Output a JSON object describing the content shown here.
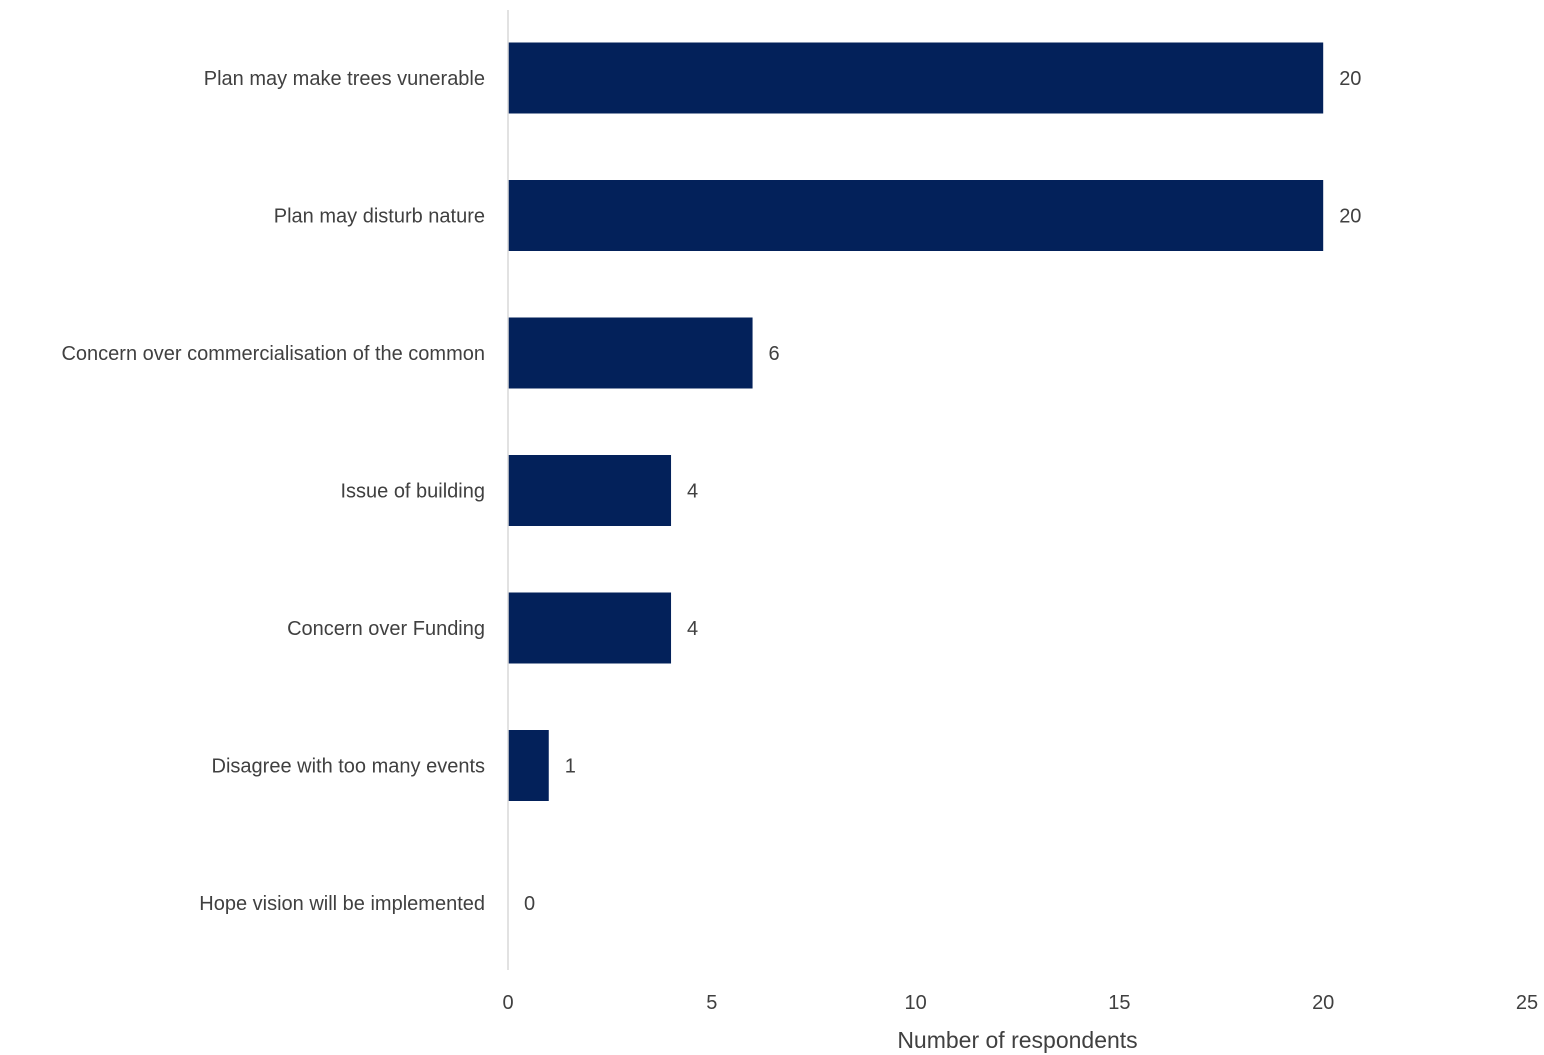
{
  "chart_data": {
    "type": "bar",
    "orientation": "horizontal",
    "categories": [
      "Plan may make trees vunerable",
      "Plan may disturb nature",
      "Concern over commercialisation of the common",
      "Issue of building",
      "Concern over Funding",
      "Disagree with too many events",
      "Hope vision will be implemented"
    ],
    "values": [
      20,
      20,
      6,
      4,
      4,
      1,
      0
    ],
    "value_labels": [
      "20",
      "20",
      "6",
      "4",
      "4",
      "1",
      "0"
    ],
    "xlabel": "Number of respondents",
    "ylabel": "",
    "xlim": [
      0,
      25
    ],
    "ticks": [
      "0",
      "5",
      "10",
      "15",
      "20",
      "25"
    ],
    "tick_values": [
      0,
      5,
      10,
      15,
      20,
      25
    ],
    "grid": false,
    "bar_color": "#03215a",
    "axis_color": "#d9d9d9"
  }
}
